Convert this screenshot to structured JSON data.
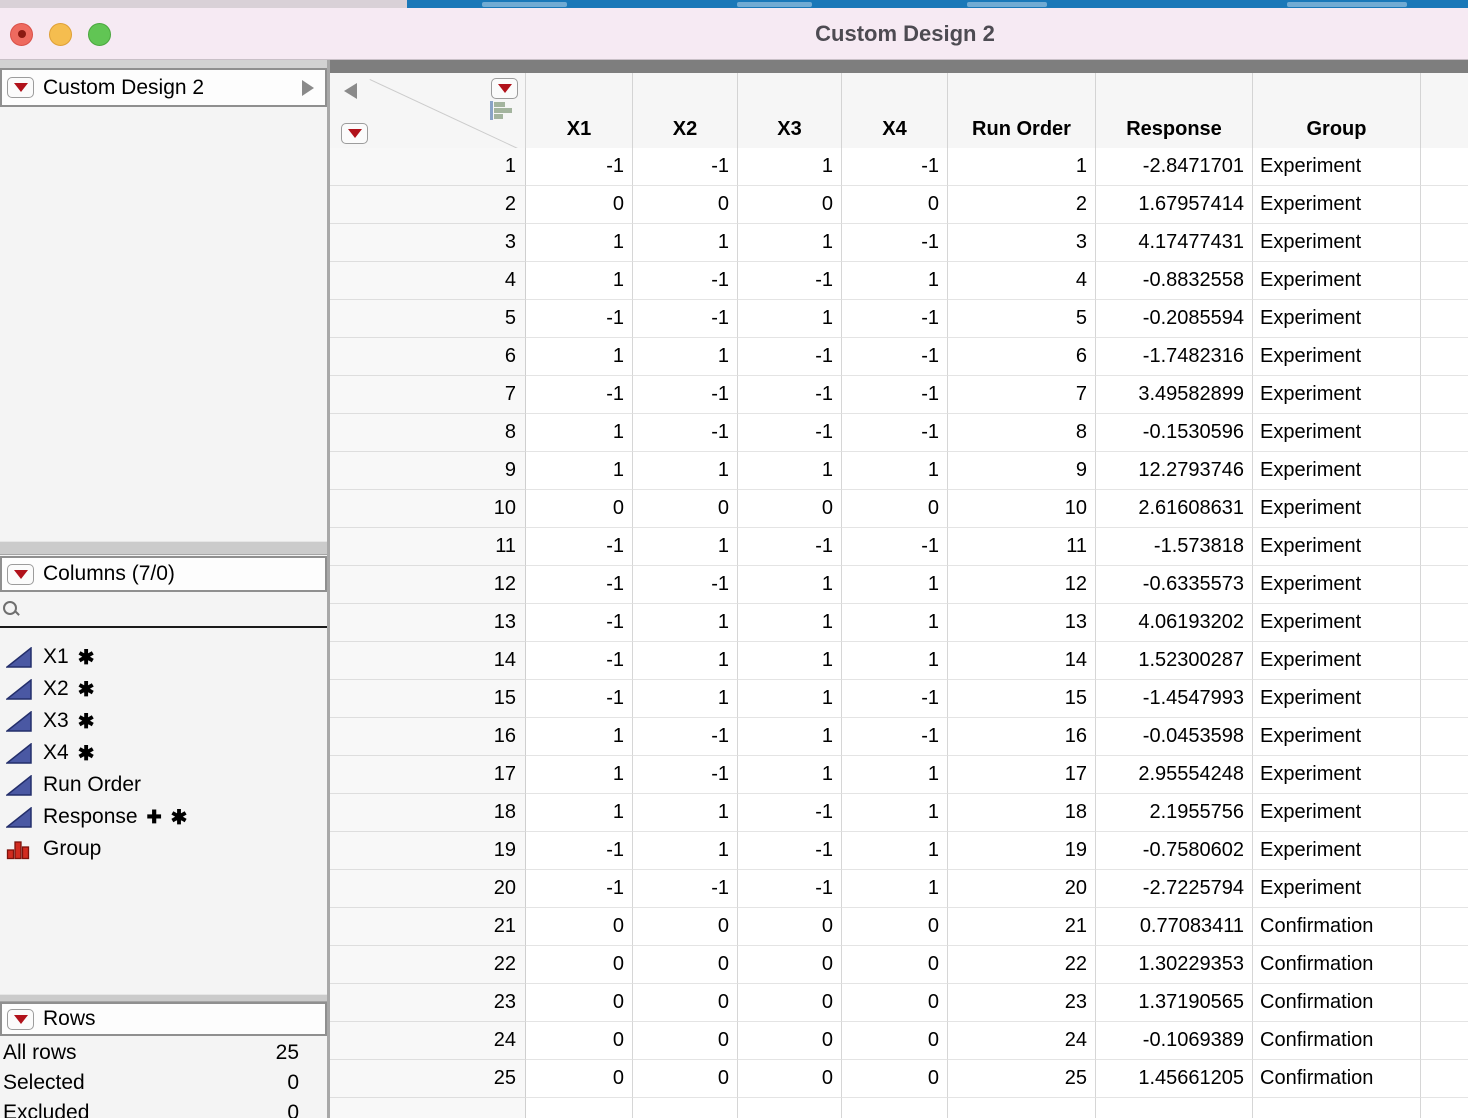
{
  "window": {
    "title": "Custom Design 2"
  },
  "sidebar": {
    "design_panel": {
      "title": "Custom Design 2"
    },
    "columns_panel": {
      "title": "Columns (7/0)",
      "items": [
        {
          "label": "X1",
          "icon": "continuous-icon",
          "badges": [
            "asterisk"
          ]
        },
        {
          "label": "X2",
          "icon": "continuous-icon",
          "badges": [
            "asterisk"
          ]
        },
        {
          "label": "X3",
          "icon": "continuous-icon",
          "badges": [
            "asterisk"
          ]
        },
        {
          "label": "X4",
          "icon": "continuous-icon",
          "badges": [
            "asterisk"
          ]
        },
        {
          "label": "Run Order",
          "icon": "continuous-icon",
          "badges": []
        },
        {
          "label": "Response",
          "icon": "continuous-icon",
          "badges": [
            "plus",
            "asterisk"
          ]
        },
        {
          "label": "Group",
          "icon": "nominal-icon",
          "badges": []
        }
      ]
    },
    "rows_panel": {
      "title": "Rows",
      "stats": [
        {
          "label": "All rows",
          "value": "25"
        },
        {
          "label": "Selected",
          "value": "0"
        },
        {
          "label": "Excluded",
          "value": "0"
        }
      ]
    }
  },
  "table": {
    "columns": [
      "X1",
      "X2",
      "X3",
      "X4",
      "Run Order",
      "Response",
      "Group"
    ],
    "rows": [
      {
        "n": "1",
        "x": [
          "-1",
          "-1",
          "1",
          "-1"
        ],
        "run": "1",
        "response": "-2.8471701",
        "group": "Experiment"
      },
      {
        "n": "2",
        "x": [
          "0",
          "0",
          "0",
          "0"
        ],
        "run": "2",
        "response": "1.67957414",
        "group": "Experiment"
      },
      {
        "n": "3",
        "x": [
          "1",
          "1",
          "1",
          "-1"
        ],
        "run": "3",
        "response": "4.17477431",
        "group": "Experiment"
      },
      {
        "n": "4",
        "x": [
          "1",
          "-1",
          "-1",
          "1"
        ],
        "run": "4",
        "response": "-0.8832558",
        "group": "Experiment"
      },
      {
        "n": "5",
        "x": [
          "-1",
          "-1",
          "1",
          "-1"
        ],
        "run": "5",
        "response": "-0.2085594",
        "group": "Experiment"
      },
      {
        "n": "6",
        "x": [
          "1",
          "1",
          "-1",
          "-1"
        ],
        "run": "6",
        "response": "-1.7482316",
        "group": "Experiment"
      },
      {
        "n": "7",
        "x": [
          "-1",
          "-1",
          "-1",
          "-1"
        ],
        "run": "7",
        "response": "3.49582899",
        "group": "Experiment"
      },
      {
        "n": "8",
        "x": [
          "1",
          "-1",
          "-1",
          "-1"
        ],
        "run": "8",
        "response": "-0.1530596",
        "group": "Experiment"
      },
      {
        "n": "9",
        "x": [
          "1",
          "1",
          "1",
          "1"
        ],
        "run": "9",
        "response": "12.2793746",
        "group": "Experiment"
      },
      {
        "n": "10",
        "x": [
          "0",
          "0",
          "0",
          "0"
        ],
        "run": "10",
        "response": "2.61608631",
        "group": "Experiment"
      },
      {
        "n": "11",
        "x": [
          "-1",
          "1",
          "-1",
          "-1"
        ],
        "run": "11",
        "response": "-1.573818",
        "group": "Experiment"
      },
      {
        "n": "12",
        "x": [
          "-1",
          "-1",
          "1",
          "1"
        ],
        "run": "12",
        "response": "-0.6335573",
        "group": "Experiment"
      },
      {
        "n": "13",
        "x": [
          "-1",
          "1",
          "1",
          "1"
        ],
        "run": "13",
        "response": "4.06193202",
        "group": "Experiment"
      },
      {
        "n": "14",
        "x": [
          "-1",
          "1",
          "1",
          "1"
        ],
        "run": "14",
        "response": "1.52300287",
        "group": "Experiment"
      },
      {
        "n": "15",
        "x": [
          "-1",
          "1",
          "1",
          "-1"
        ],
        "run": "15",
        "response": "-1.4547993",
        "group": "Experiment"
      },
      {
        "n": "16",
        "x": [
          "1",
          "-1",
          "1",
          "-1"
        ],
        "run": "16",
        "response": "-0.0453598",
        "group": "Experiment"
      },
      {
        "n": "17",
        "x": [
          "1",
          "-1",
          "1",
          "1"
        ],
        "run": "17",
        "response": "2.95554248",
        "group": "Experiment"
      },
      {
        "n": "18",
        "x": [
          "1",
          "1",
          "-1",
          "1"
        ],
        "run": "18",
        "response": "2.1955756",
        "group": "Experiment"
      },
      {
        "n": "19",
        "x": [
          "-1",
          "1",
          "-1",
          "1"
        ],
        "run": "19",
        "response": "-0.7580602",
        "group": "Experiment"
      },
      {
        "n": "20",
        "x": [
          "-1",
          "-1",
          "-1",
          "1"
        ],
        "run": "20",
        "response": "-2.7225794",
        "group": "Experiment"
      },
      {
        "n": "21",
        "x": [
          "0",
          "0",
          "0",
          "0"
        ],
        "run": "21",
        "response": "0.77083411",
        "group": "Confirmation"
      },
      {
        "n": "22",
        "x": [
          "0",
          "0",
          "0",
          "0"
        ],
        "run": "22",
        "response": "1.30229353",
        "group": "Confirmation"
      },
      {
        "n": "23",
        "x": [
          "0",
          "0",
          "0",
          "0"
        ],
        "run": "23",
        "response": "1.37190565",
        "group": "Confirmation"
      },
      {
        "n": "24",
        "x": [
          "0",
          "0",
          "0",
          "0"
        ],
        "run": "24",
        "response": "-0.1069389",
        "group": "Confirmation"
      },
      {
        "n": "25",
        "x": [
          "0",
          "0",
          "0",
          "0"
        ],
        "run": "25",
        "response": "1.45661205",
        "group": "Confirmation"
      }
    ]
  },
  "colors": {
    "accent_red": "#B1121B",
    "continuous_icon_blue": "#4A58A3",
    "nominal_icon_red": "#D22B20",
    "titlebar_pink": "#F6EAF3",
    "background_toolbar_blue": "#1A78B8"
  }
}
